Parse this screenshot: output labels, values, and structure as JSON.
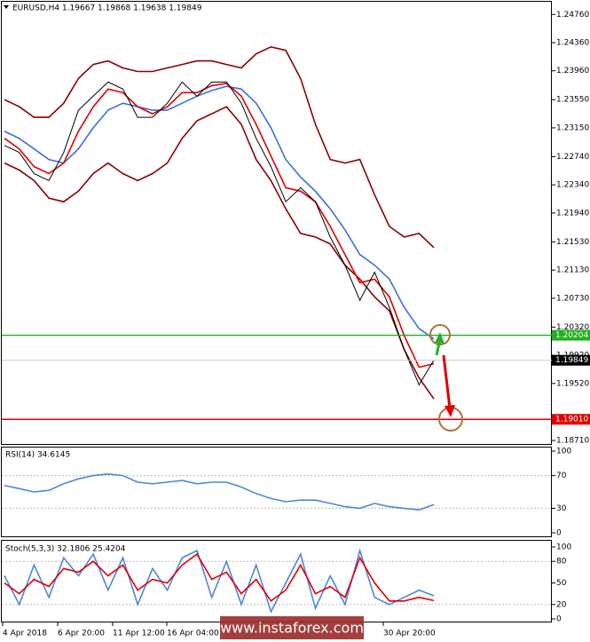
{
  "chart_data": [
    {
      "type": "line",
      "title": "EURUSD,H4  1.19667 1.19868 1.19638 1.19849",
      "x_labels": [
        "4 Apr 2018",
        "6 Apr 20:00",
        "11 Apr 12:00",
        "16 Apr 04:00",
        "30 Apr 20:00"
      ],
      "ylim": [
        1.1866,
        1.2494
      ],
      "yticks": [
        {
          "value": 1.2476,
          "label": "1.24760"
        },
        {
          "value": 1.2436,
          "label": "1.24360"
        },
        {
          "value": 1.2396,
          "label": "1.23960"
        },
        {
          "value": 1.2355,
          "label": "1.23550"
        },
        {
          "value": 1.2315,
          "label": "1.23150"
        },
        {
          "value": 1.2274,
          "label": "1.22740"
        },
        {
          "value": 1.2234,
          "label": "1.22340"
        },
        {
          "value": 1.2194,
          "label": "1.21940"
        },
        {
          "value": 1.2153,
          "label": "1.21530"
        },
        {
          "value": 1.2113,
          "label": "1.21130"
        },
        {
          "value": 1.2073,
          "label": "1.20730"
        },
        {
          "value": 1.2032,
          "label": "1.20320"
        },
        {
          "value": 1.1992,
          "label": "1.19920"
        },
        {
          "value": 1.1952,
          "label": "1.19520"
        },
        {
          "value": 1.1871,
          "label": "1.18710"
        }
      ],
      "hlines": [
        {
          "value": 1.20204,
          "label": "1.20204",
          "color": "#22b022"
        },
        {
          "value": 1.1901,
          "label": "1.19010",
          "color": "#e00000"
        }
      ],
      "last_price": {
        "value": 1.19849,
        "label": "1.19849"
      },
      "series": [
        {
          "color": "#8b0000",
          "values": [
            1.2355,
            1.2345,
            1.233,
            1.233,
            1.235,
            1.2385,
            1.2405,
            1.241,
            1.24,
            1.2395,
            1.2395,
            1.24,
            1.2405,
            1.241,
            1.241,
            1.2405,
            1.24,
            1.242,
            1.243,
            1.2425,
            1.2385,
            1.232,
            1.227,
            1.2265,
            1.227,
            1.222,
            1.2175,
            1.216,
            1.2165,
            1.2145
          ]
        },
        {
          "color": "#8b0000",
          "values": [
            1.2265,
            1.2255,
            1.224,
            1.2215,
            1.221,
            1.2225,
            1.225,
            1.2265,
            1.225,
            1.224,
            1.225,
            1.2265,
            1.23,
            1.2325,
            1.2335,
            1.2345,
            1.232,
            1.227,
            1.224,
            1.22,
            1.2165,
            1.216,
            1.215,
            1.212,
            1.21,
            1.2075,
            1.2055,
            1.2,
            1.196,
            1.193
          ]
        },
        {
          "color": "#3a6fe0",
          "values": [
            1.231,
            1.23,
            1.2285,
            1.227,
            1.2265,
            1.2285,
            1.2315,
            1.234,
            1.235,
            1.2345,
            1.234,
            1.234,
            1.235,
            1.236,
            1.2368,
            1.2374,
            1.237,
            1.235,
            1.2315,
            1.227,
            1.2245,
            1.2225,
            1.22,
            1.217,
            1.2135,
            1.212,
            1.21,
            1.206,
            1.203,
            1.2015
          ]
        },
        {
          "color": "#e00000",
          "values": [
            1.23,
            1.2285,
            1.226,
            1.225,
            1.2265,
            1.231,
            1.2345,
            1.237,
            1.2365,
            1.2345,
            1.2335,
            1.2345,
            1.2365,
            1.2365,
            1.2375,
            1.2378,
            1.236,
            1.232,
            1.2275,
            1.223,
            1.2225,
            1.221,
            1.2175,
            1.2135,
            1.2095,
            1.21,
            1.2075,
            1.202,
            1.1975,
            1.198
          ]
        },
        {
          "color": "#000000",
          "values": [
            1.229,
            1.228,
            1.225,
            1.224,
            1.228,
            1.234,
            1.236,
            1.238,
            1.237,
            1.233,
            1.233,
            1.235,
            1.238,
            1.236,
            1.238,
            1.238,
            1.235,
            1.23,
            1.226,
            1.221,
            1.223,
            1.221,
            1.216,
            1.212,
            1.207,
            1.211,
            1.206,
            1.2,
            1.195,
            1.1985
          ]
        }
      ]
    },
    {
      "type": "line",
      "title": "RSI(14) 34.6145",
      "ylim": [
        0,
        100
      ],
      "yticks": [
        100,
        70,
        30,
        0
      ],
      "levels": [
        70,
        30
      ],
      "series": [
        {
          "color": "#4f86d9",
          "values": [
            58,
            54,
            50,
            52,
            60,
            66,
            70,
            72,
            70,
            62,
            60,
            62,
            64,
            60,
            62,
            62,
            56,
            48,
            42,
            38,
            40,
            40,
            36,
            32,
            30,
            36,
            32,
            30,
            28,
            34.6145
          ]
        }
      ]
    },
    {
      "type": "line",
      "title": "Stoch(5,3,3) 32.1806 25.4204",
      "ylim": [
        0,
        100
      ],
      "yticks": [
        100,
        80,
        50,
        20,
        0
      ],
      "levels": [
        80,
        20
      ],
      "series": [
        {
          "color": "#4f86d9",
          "values": [
            60,
            20,
            75,
            30,
            85,
            60,
            90,
            40,
            85,
            20,
            70,
            40,
            85,
            95,
            30,
            80,
            20,
            75,
            10,
            50,
            90,
            15,
            60,
            20,
            95,
            30,
            20,
            30,
            40,
            32.1806
          ]
        },
        {
          "color": "#e00000",
          "values": [
            50,
            35,
            55,
            45,
            70,
            65,
            80,
            60,
            75,
            40,
            55,
            50,
            75,
            90,
            55,
            65,
            35,
            55,
            25,
            40,
            75,
            35,
            45,
            30,
            85,
            50,
            25,
            25,
            30,
            25.4204
          ]
        }
      ]
    }
  ],
  "watermark": "www.instaforex.com"
}
